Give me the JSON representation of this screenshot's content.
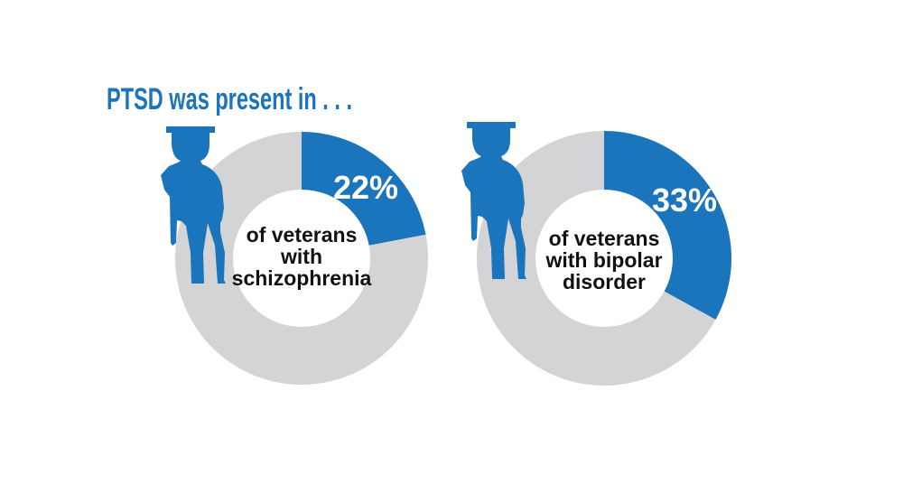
{
  "headline": "PTSD was present in . . .",
  "colors": {
    "accent": "#1b75bc",
    "track": "#d4d4d6",
    "center": "#ffffff",
    "text": "#111111"
  },
  "icons": [
    "soldier-silhouette-icon",
    "soldier-silhouette-icon"
  ],
  "chart_data": [
    {
      "type": "pie",
      "values": [
        22,
        78
      ],
      "highlight_value": 22,
      "value_label": "22%",
      "center_lines": [
        "of veterans",
        "with",
        "schizophrenia"
      ]
    },
    {
      "type": "pie",
      "values": [
        33,
        67
      ],
      "highlight_value": 33,
      "value_label": "33%",
      "center_lines": [
        "of veterans",
        "with bipolar",
        "disorder"
      ]
    }
  ]
}
